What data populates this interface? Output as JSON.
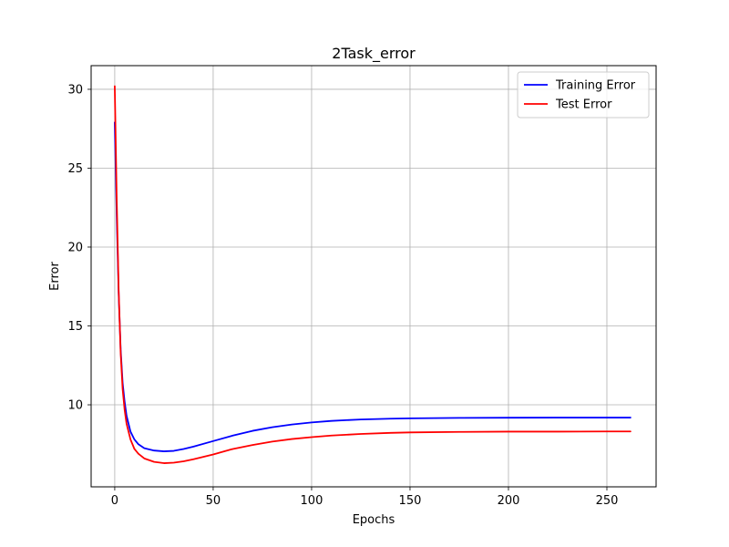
{
  "chart_data": {
    "type": "line",
    "title": "2Task_error",
    "xlabel": "Epochs",
    "ylabel": "Error",
    "xlim": [
      -12,
      275
    ],
    "ylim": [
      4.8,
      31.5
    ],
    "xticks": [
      0,
      50,
      100,
      150,
      200,
      250
    ],
    "yticks": [
      10,
      15,
      20,
      25,
      30
    ],
    "grid": true,
    "legend_position": "upper right",
    "series": [
      {
        "name": "Training Error",
        "color": "#0000ff",
        "x": [
          0,
          1,
          2,
          3,
          4,
          5,
          6,
          8,
          10,
          12,
          15,
          20,
          25,
          30,
          35,
          40,
          50,
          60,
          70,
          80,
          90,
          100,
          110,
          125,
          140,
          150,
          175,
          200,
          225,
          250,
          262
        ],
        "y": [
          27.9,
          22.0,
          17.0,
          13.5,
          11.4,
          10.2,
          9.3,
          8.3,
          7.8,
          7.5,
          7.25,
          7.1,
          7.05,
          7.08,
          7.2,
          7.35,
          7.7,
          8.05,
          8.35,
          8.58,
          8.75,
          8.88,
          8.98,
          9.07,
          9.12,
          9.14,
          9.17,
          9.18,
          9.19,
          9.19,
          9.19
        ]
      },
      {
        "name": "Test Error",
        "color": "#ff0000",
        "x": [
          0,
          1,
          2,
          3,
          4,
          5,
          6,
          8,
          10,
          12,
          15,
          20,
          25,
          30,
          35,
          40,
          50,
          60,
          70,
          80,
          90,
          100,
          110,
          125,
          140,
          150,
          175,
          200,
          225,
          250,
          262
        ],
        "y": [
          30.2,
          23.0,
          17.2,
          13.3,
          11.0,
          9.7,
          8.8,
          7.8,
          7.2,
          6.9,
          6.6,
          6.38,
          6.3,
          6.33,
          6.42,
          6.55,
          6.85,
          7.2,
          7.45,
          7.67,
          7.83,
          7.95,
          8.05,
          8.15,
          8.22,
          8.25,
          8.28,
          8.3,
          8.3,
          8.31,
          8.31
        ]
      }
    ]
  }
}
